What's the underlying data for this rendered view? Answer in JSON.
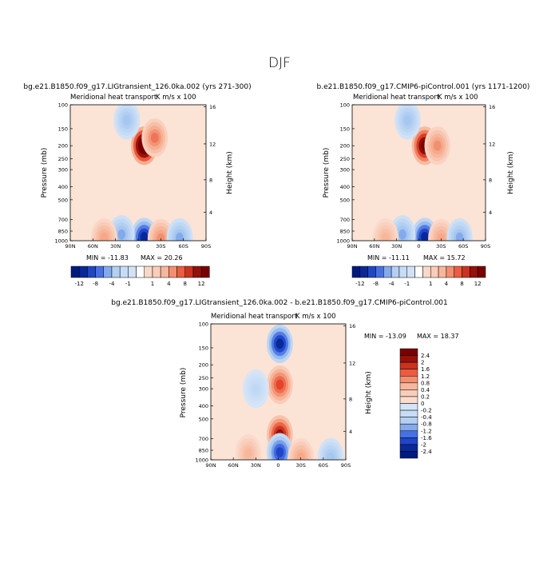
{
  "figure": {
    "title": "DJF"
  },
  "colors": {
    "neg_strong": "#001a80",
    "neg_mid": "#2a56e0",
    "neg_light": "#a6c8f0",
    "neg_faint": "#dbe8f8",
    "pos_faint": "#fbe3d6",
    "pos_light": "#f6a98a",
    "pos_mid": "#e8452a",
    "pos_strong": "#7a0000"
  },
  "chart_data": [
    {
      "type": "heatmap",
      "case_title": "bg.e21.B1850.f09_g17.LIGtransient_126.0ka.002 (yrs 271-300)",
      "title": "Meridional heat transport",
      "units_label": "K m/s x 100",
      "ylabel": "Pressure (mb)",
      "y2label": "Height (km)",
      "x_ticks": [
        "90N",
        "60N",
        "30N",
        "0",
        "30S",
        "60S",
        "90S"
      ],
      "y_ticks": [
        "100",
        "150",
        "200",
        "250",
        "300",
        "400",
        "500",
        "700",
        "850",
        "1000"
      ],
      "y2_ticks": [
        "16",
        "12",
        "8",
        "4"
      ],
      "min_label": "MIN = -11.83",
      "max_label": "MAX = 20.26",
      "levels": [
        -12,
        -10,
        -8,
        -6,
        -4,
        -2,
        -1,
        -0.5,
        0.5,
        1,
        2,
        4,
        6,
        8,
        10,
        12
      ],
      "colorbar_labels": [
        "-12",
        "-8",
        "-4",
        "-1",
        "1",
        "4",
        "8",
        "12"
      ],
      "features": [
        {
          "lat": -8,
          "p": 200,
          "value": 18
        },
        {
          "lat": -22,
          "p": 175,
          "value": 6
        },
        {
          "lat": 15,
          "p": 130,
          "value": -4
        },
        {
          "lat": -8,
          "p": 940,
          "value": -11
        },
        {
          "lat": 22,
          "p": 900,
          "value": -5
        },
        {
          "lat": -30,
          "p": 960,
          "value": 5
        },
        {
          "lat": -55,
          "p": 950,
          "value": -5
        },
        {
          "lat": 45,
          "p": 950,
          "value": 4
        }
      ]
    },
    {
      "type": "heatmap",
      "case_title": "b.e21.B1850.f09_g17.CMIP6-piControl.001 (yrs 1171-1200)",
      "title": "Meridional heat transport",
      "units_label": "K m/s x 100",
      "ylabel": "Pressure (mb)",
      "y2label": "Height (km)",
      "x_ticks": [
        "90N",
        "60N",
        "30N",
        "0",
        "30S",
        "60S",
        "90S"
      ],
      "y_ticks": [
        "100",
        "150",
        "200",
        "250",
        "300",
        "400",
        "500",
        "700",
        "850",
        "1000"
      ],
      "y2_ticks": [
        "16",
        "12",
        "8",
        "4"
      ],
      "min_label": "MIN = -11.11",
      "max_label": "MAX = 15.72",
      "levels": [
        -12,
        -10,
        -8,
        -6,
        -4,
        -2,
        -1,
        -0.5,
        0.5,
        1,
        2,
        4,
        6,
        8,
        10,
        12
      ],
      "colorbar_labels": [
        "-12",
        "-8",
        "-4",
        "-1",
        "1",
        "4",
        "8",
        "12"
      ],
      "features": [
        {
          "lat": -8,
          "p": 200,
          "value": 14
        },
        {
          "lat": -25,
          "p": 200,
          "value": 5
        },
        {
          "lat": 15,
          "p": 130,
          "value": -4
        },
        {
          "lat": -8,
          "p": 940,
          "value": -11
        },
        {
          "lat": 22,
          "p": 900,
          "value": -5
        },
        {
          "lat": -30,
          "p": 960,
          "value": 4
        },
        {
          "lat": -55,
          "p": 950,
          "value": -5
        },
        {
          "lat": 45,
          "p": 950,
          "value": 3
        }
      ]
    },
    {
      "type": "heatmap",
      "case_title": "bg.e21.B1850.f09_g17.LIGtransient_126.0ka.002 - b.e21.B1850.f09_g17.CMIP6-piControl.001",
      "title": "Meridional heat transport",
      "units_label": "K m/s x 100",
      "ylabel": "Pressure (mb)",
      "y2label": "Height (km)",
      "x_ticks": [
        "90N",
        "60N",
        "30N",
        "0",
        "30S",
        "60S",
        "90S"
      ],
      "y_ticks": [
        "100",
        "150",
        "200",
        "250",
        "300",
        "400",
        "500",
        "700",
        "850",
        "1000"
      ],
      "y2_ticks": [
        "16",
        "12",
        "8",
        "4"
      ],
      "min_label": "MIN = -13.09",
      "max_label": "MAX =  18.37",
      "levels": [
        -2.4,
        -2,
        -1.6,
        -1.2,
        -0.8,
        -0.4,
        -0.2,
        0,
        0.2,
        0.4,
        0.8,
        1.2,
        1.6,
        2,
        2.4
      ],
      "colorbar_labels": [
        "2.4",
        "2",
        "1.6",
        "1.2",
        "0.8",
        "0.4",
        "0.2",
        "0",
        "-0.2",
        "-0.4",
        "-0.8",
        "-1.2",
        "-1.6",
        "-2",
        "-2.4"
      ],
      "features": [
        {
          "lat": -2,
          "p": 140,
          "value": -2.2
        },
        {
          "lat": -2,
          "p": 280,
          "value": 1.6
        },
        {
          "lat": -2,
          "p": 650,
          "value": 2.2
        },
        {
          "lat": -2,
          "p": 880,
          "value": -1.8
        },
        {
          "lat": -30,
          "p": 960,
          "value": 0.8
        },
        {
          "lat": 30,
          "p": 300,
          "value": -0.4
        },
        {
          "lat": 40,
          "p": 900,
          "value": 0.6
        },
        {
          "lat": -70,
          "p": 960,
          "value": -0.8
        }
      ]
    }
  ]
}
